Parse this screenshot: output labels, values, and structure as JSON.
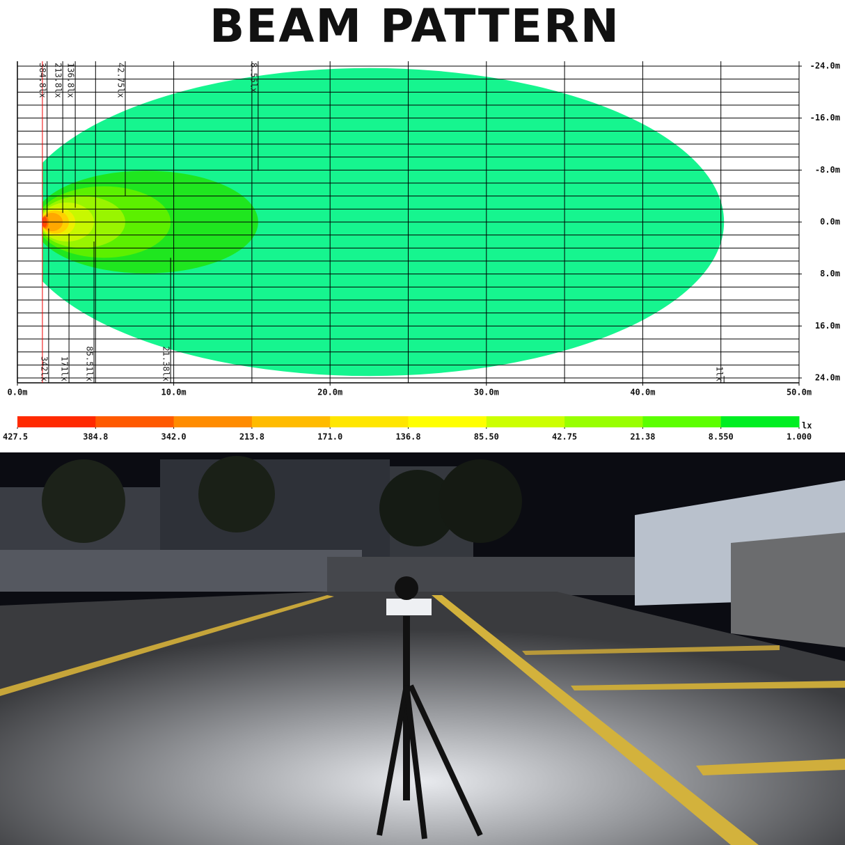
{
  "chart_data": {
    "type": "contour",
    "title": "BEAM PATTERN",
    "xlim": [
      0,
      50
    ],
    "ylim": [
      -24,
      24
    ],
    "xticks": [
      {
        "value": 0,
        "label": "0.0m"
      },
      {
        "value": 10,
        "label": "10.0m"
      },
      {
        "value": 20,
        "label": "20.0m"
      },
      {
        "value": 30,
        "label": "30.0m"
      },
      {
        "value": 40,
        "label": "40.0m"
      },
      {
        "value": 50,
        "label": "50.0m"
      }
    ],
    "yticks": [
      {
        "value": -24,
        "label": "-24.0m"
      },
      {
        "value": -16,
        "label": "-16.0m"
      },
      {
        "value": -8,
        "label": "-8.0m"
      },
      {
        "value": 0,
        "label": "0.0m"
      },
      {
        "value": 8,
        "label": "8.0m"
      },
      {
        "value": 16,
        "label": "16.0m"
      },
      {
        "value": 24,
        "label": "24.0m"
      }
    ],
    "grid": {
      "x_step": 5,
      "y_step": 2
    },
    "source_x": 1.6,
    "contours": [
      {
        "value": 1,
        "label": "1lx",
        "x_end": 45.2,
        "half_width": 23.7,
        "color": "#16f58f"
      },
      {
        "value": 8.55,
        "label": "8.55lx",
        "x_end": 15.4,
        "half_width": 7.9,
        "color": "#1fe61f"
      },
      {
        "value": 21.38,
        "label": "21.38lx",
        "x_end": 9.8,
        "half_width": 5.5,
        "color": "#5cf000"
      },
      {
        "value": 42.75,
        "label": "42.75lx",
        "x_end": 6.9,
        "half_width": 4.0,
        "color": "#99f500"
      },
      {
        "value": 85.51,
        "label": "85.51lx",
        "x_end": 4.9,
        "half_width": 3.0,
        "color": "#c8f800"
      },
      {
        "value": 136.8,
        "label": "136.8lx",
        "x_end": 3.7,
        "half_width": 2.2,
        "color": "#eef000"
      },
      {
        "value": 171,
        "label": "171lx",
        "x_end": 3.3,
        "half_width": 1.8,
        "color": "#ffd000"
      },
      {
        "value": 213.8,
        "label": "213.8lx",
        "x_end": 2.9,
        "half_width": 1.4,
        "color": "#ffa800"
      },
      {
        "value": 342,
        "label": "342lx",
        "x_end": 2.0,
        "half_width": 1.0,
        "color": "#ff7a00"
      },
      {
        "value": 384.8,
        "label": "384.8lx",
        "x_end": 1.9,
        "half_width": 0.8,
        "color": "#ff4a00"
      }
    ],
    "legend": {
      "unit": "lx",
      "levels": [
        427.5,
        384.8,
        {
          "value": 342,
          "label": "342.0"
        },
        213.8,
        {
          "value": 171,
          "label": "171.0"
        },
        136.8,
        {
          "value": 85.5,
          "label": "85.50"
        },
        42.75,
        21.38,
        {
          "value": 8.55,
          "label": "8.550"
        },
        {
          "value": 1,
          "label": "1.000"
        }
      ],
      "colors": [
        "#ff2a00",
        "#ff5a00",
        "#ff8c00",
        "#ffbb00",
        "#ffe600",
        "#ffff00",
        "#ccff00",
        "#99ff00",
        "#5cff00",
        "#00ee22",
        "#19f592"
      ]
    }
  }
}
